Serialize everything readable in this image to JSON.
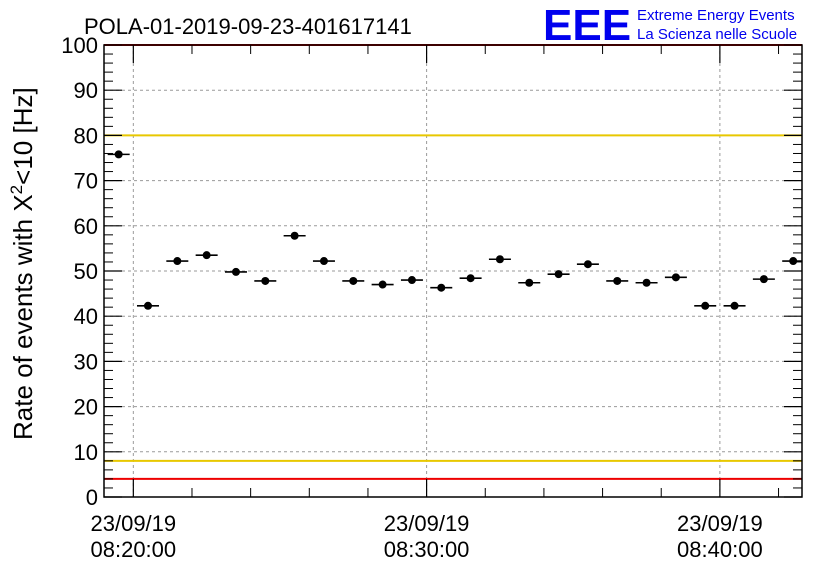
{
  "chart_data": {
    "type": "scatter",
    "title": "POLA-01-2019-09-23-401617141",
    "ylabel_main": "Rate of events with X",
    "ylabel_sup": "2",
    "ylabel_tail": "<10 [Hz]",
    "xlabel": "",
    "ylim": [
      0,
      100
    ],
    "y_ticks": [
      "0",
      "10",
      "20",
      "30",
      "40",
      "50",
      "60",
      "70",
      "80",
      "90",
      "100"
    ],
    "x_range_minutes": [
      -1.0,
      22.8
    ],
    "x_ticks": [
      {
        "minute": 0,
        "date": "23/09/19",
        "time": "08:20:00"
      },
      {
        "minute": 10,
        "date": "23/09/19",
        "time": "08:30:00"
      },
      {
        "minute": 20,
        "date": "23/09/19",
        "time": "08:40:00"
      }
    ],
    "bin_width_minutes": 0.75,
    "series": [
      {
        "name": "rate",
        "x_minutes": [
          -0.5,
          0.5,
          1.5,
          2.5,
          3.5,
          4.5,
          5.5,
          6.5,
          7.5,
          8.5,
          9.5,
          10.5,
          11.5,
          12.5,
          13.5,
          14.5,
          15.5,
          16.5,
          17.5,
          18.5,
          19.5,
          20.5,
          21.5,
          22.5
        ],
        "values": [
          75.8,
          42.3,
          52.2,
          53.5,
          49.8,
          47.8,
          57.8,
          52.2,
          47.8,
          47.0,
          48.0,
          46.3,
          48.4,
          52.6,
          47.4,
          49.3,
          51.5,
          47.8,
          47.4,
          48.6,
          42.3,
          42.3,
          48.2,
          52.2
        ]
      }
    ],
    "reference_lines": [
      {
        "name": "upper-red-line",
        "y": 100,
        "color": "#ee0000"
      },
      {
        "name": "upper-yellow-line",
        "y": 80,
        "color": "#e8c800"
      },
      {
        "name": "lower-yellow-line",
        "y": 8,
        "color": "#e8c800"
      },
      {
        "name": "lower-red-line",
        "y": 4,
        "color": "#ee0000"
      }
    ],
    "grid": true
  },
  "logo": {
    "letters": "EEE",
    "line1": "Extreme Energy Events",
    "line2": "La Scienza nelle Scuole",
    "color": "#0000ee"
  }
}
